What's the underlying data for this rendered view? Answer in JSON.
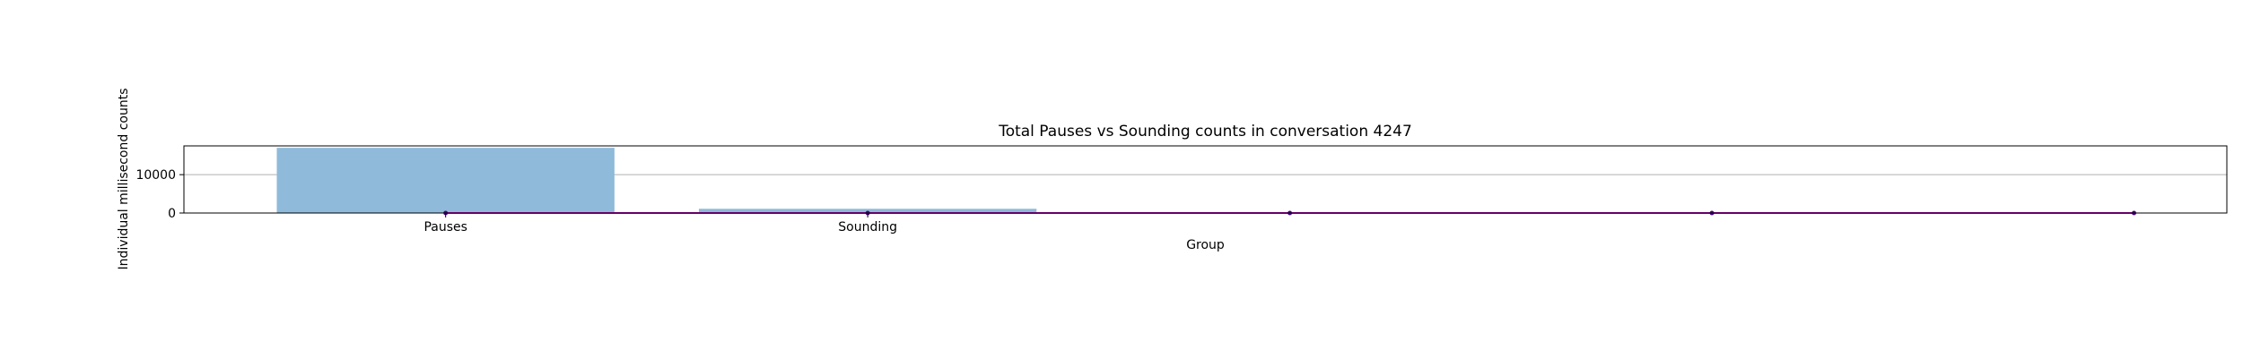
{
  "chart_data": {
    "type": "bar",
    "title": "Total Pauses vs Sounding counts in conversation 4247",
    "xlabel": "Group",
    "ylabel": "Individual millisecond counts",
    "categories": [
      "Pauses",
      "Sounding"
    ],
    "values": [
      17000,
      1100
    ],
    "ylim": [
      0,
      17500
    ],
    "yticks": [
      0,
      10000
    ],
    "grid": true,
    "colors": {
      "bar": "#8fbad9",
      "line": "#cc00cc",
      "line_marker": "#4b0082",
      "grid": "#b0b0b0"
    },
    "overlay_line": {
      "x": [
        0,
        1,
        2,
        3,
        4
      ],
      "values": [
        0,
        0,
        0,
        0,
        0
      ]
    }
  }
}
